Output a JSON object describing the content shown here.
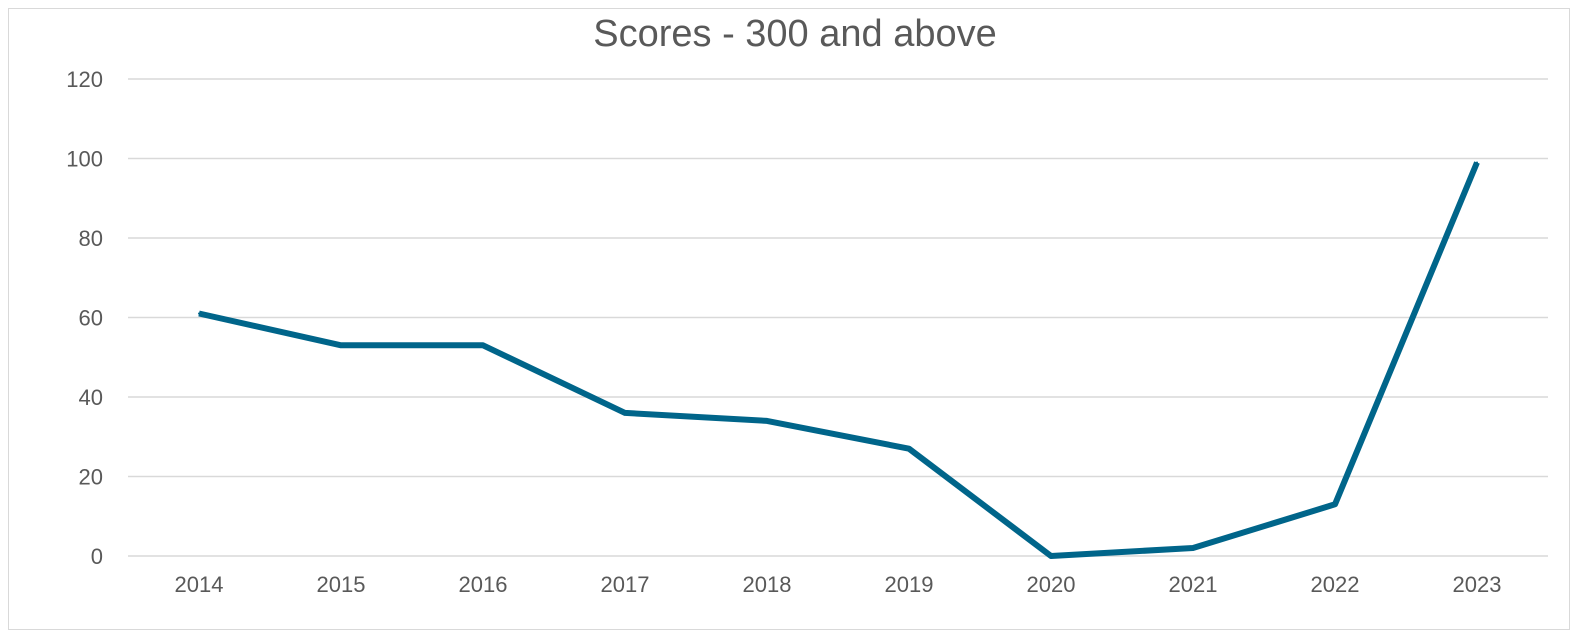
{
  "chart_data": {
    "type": "line",
    "title": "Scores - 300 and above",
    "xlabel": "",
    "ylabel": "",
    "categories": [
      "2014",
      "2015",
      "2016",
      "2017",
      "2018",
      "2019",
      "2020",
      "2021",
      "2022",
      "2023"
    ],
    "series": [
      {
        "values": [
          61,
          53,
          53,
          36,
          34,
          27,
          0,
          2,
          13,
          99
        ],
        "color": "#00658a"
      }
    ],
    "ylim": [
      0,
      120
    ],
    "yticks": [
      "0",
      "20",
      "40",
      "60",
      "80",
      "100",
      "120"
    ],
    "grid": true,
    "legend": "none"
  }
}
